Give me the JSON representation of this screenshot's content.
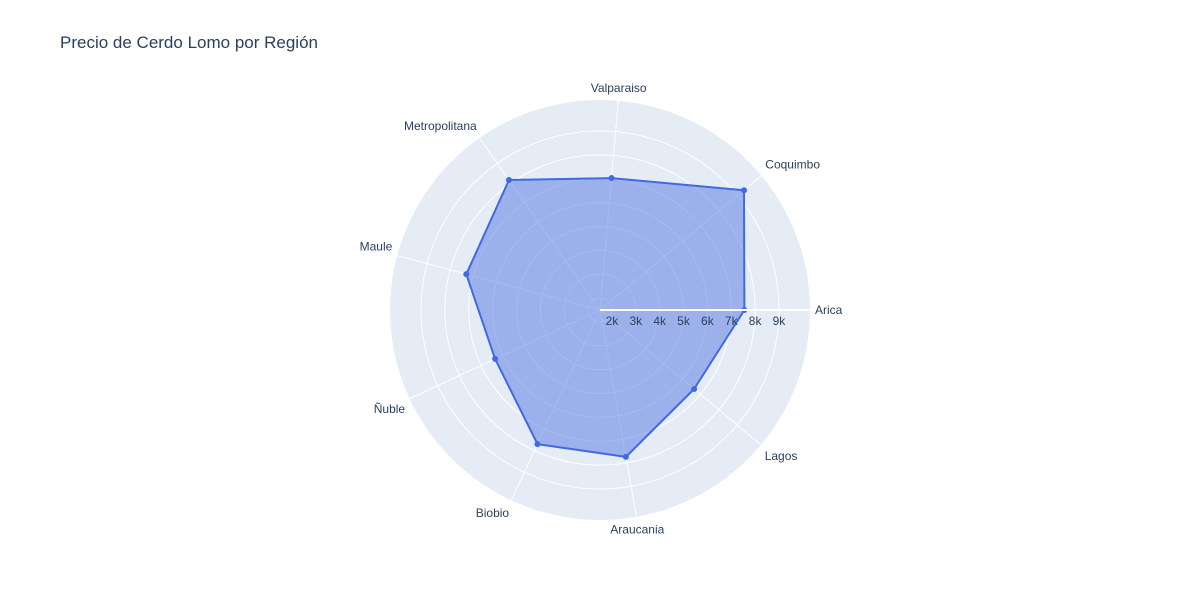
{
  "chart_data": {
    "type": "radar",
    "title": "Precio de Cerdo Lomo por Región",
    "categories": [
      "Arica",
      "Coquimbo",
      "Valparaiso",
      "Metropolitana",
      "Maule",
      "Ñuble",
      "Biobio",
      "Araucania",
      "Lagos"
    ],
    "values": [
      7550,
      9350,
      7050,
      8150,
      7300,
      6350,
      7700,
      7750,
      6650
    ],
    "radial_range": [
      1500,
      10300
    ],
    "radial_ticks": [
      2000,
      3000,
      4000,
      5000,
      6000,
      7000,
      8000,
      9000
    ],
    "radial_tick_labels": [
      "2k",
      "3k",
      "4k",
      "5k",
      "6k",
      "7k",
      "8k",
      "9k"
    ],
    "angles_deg": [
      0,
      39.75,
      85,
      125,
      165,
      205,
      245,
      280,
      320
    ],
    "grid": true,
    "colors": {
      "polar_bg": "#e5ecf6",
      "grid": "#ffffff",
      "line": "#4169e1",
      "fill": "#6a8be4",
      "fill_opacity": 0.6,
      "text": "#2a3f5f"
    }
  }
}
